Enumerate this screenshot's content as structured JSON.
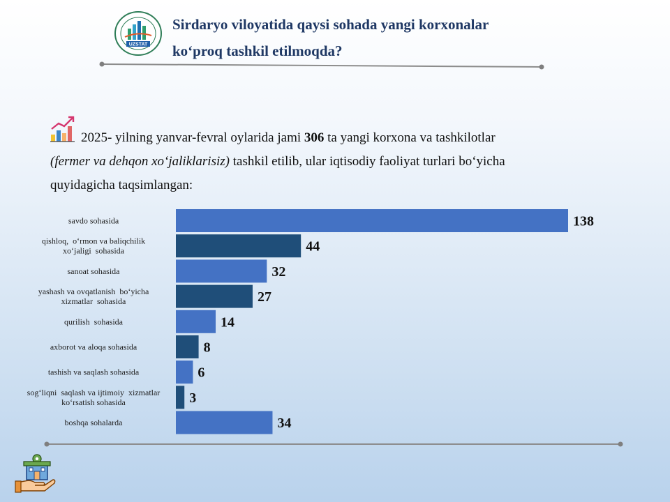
{
  "header": {
    "logo_text": "UZSTAT",
    "logo_ring_text": "SIRDARYO VILOYATI STATISTIKA BOSHQARMASI",
    "title_line1": "Sirdaryo viloyatida qaysi sohada yangi korxonalar",
    "title_line2": "ko‘proq tashkil etilmoqda?"
  },
  "intro": {
    "part1": " 2025- yilning yanvar-fevral oylarida jami ",
    "total": "306",
    "part2": " ta yangi korxona va tashkilotlar",
    "italic": "(fermer va dehqon xo‘jaliklarisiz)",
    "part3": " tashkil etilib, ular iqtisodiy faoliyat turlari bo‘yicha",
    "part4": "quyidagicha taqsimlangan:"
  },
  "icons": {
    "intro": "growth-chart-icon",
    "bottom": "hand-holding-building-icon"
  },
  "colors": {
    "title": "#1f3864",
    "bar_light": "#4472c4",
    "bar_dark": "#1f4e79",
    "rule": "#7f7f7f"
  },
  "chart_data": {
    "type": "bar",
    "orientation": "horizontal",
    "categories": [
      [
        "savdo sohasida"
      ],
      [
        "qishloq,  o‘rmon va baliqchilik",
        "xo‘jaligi  sohasida"
      ],
      [
        "sanoat sohasida"
      ],
      [
        "yashash va ovqatlanish  bo‘yicha",
        "xizmatlar  sohasida"
      ],
      [
        "qurilish  sohasida"
      ],
      [
        "axborot va aloqa sohasida"
      ],
      [
        "tashish va saqlash sohasida"
      ],
      [
        "sog‘liqni  saqlash va ijtimoiy  xizmatlar",
        "ko‘rsatish sohasida"
      ],
      [
        "boshqa sohalarda"
      ]
    ],
    "values": [
      138,
      44,
      32,
      27,
      14,
      8,
      6,
      3,
      34
    ],
    "data_labels": [
      "138",
      "44",
      "32",
      "27",
      "14",
      "8",
      "6",
      "3",
      "34"
    ],
    "xlim": [
      0,
      138
    ],
    "grid": false,
    "legend": "none"
  }
}
